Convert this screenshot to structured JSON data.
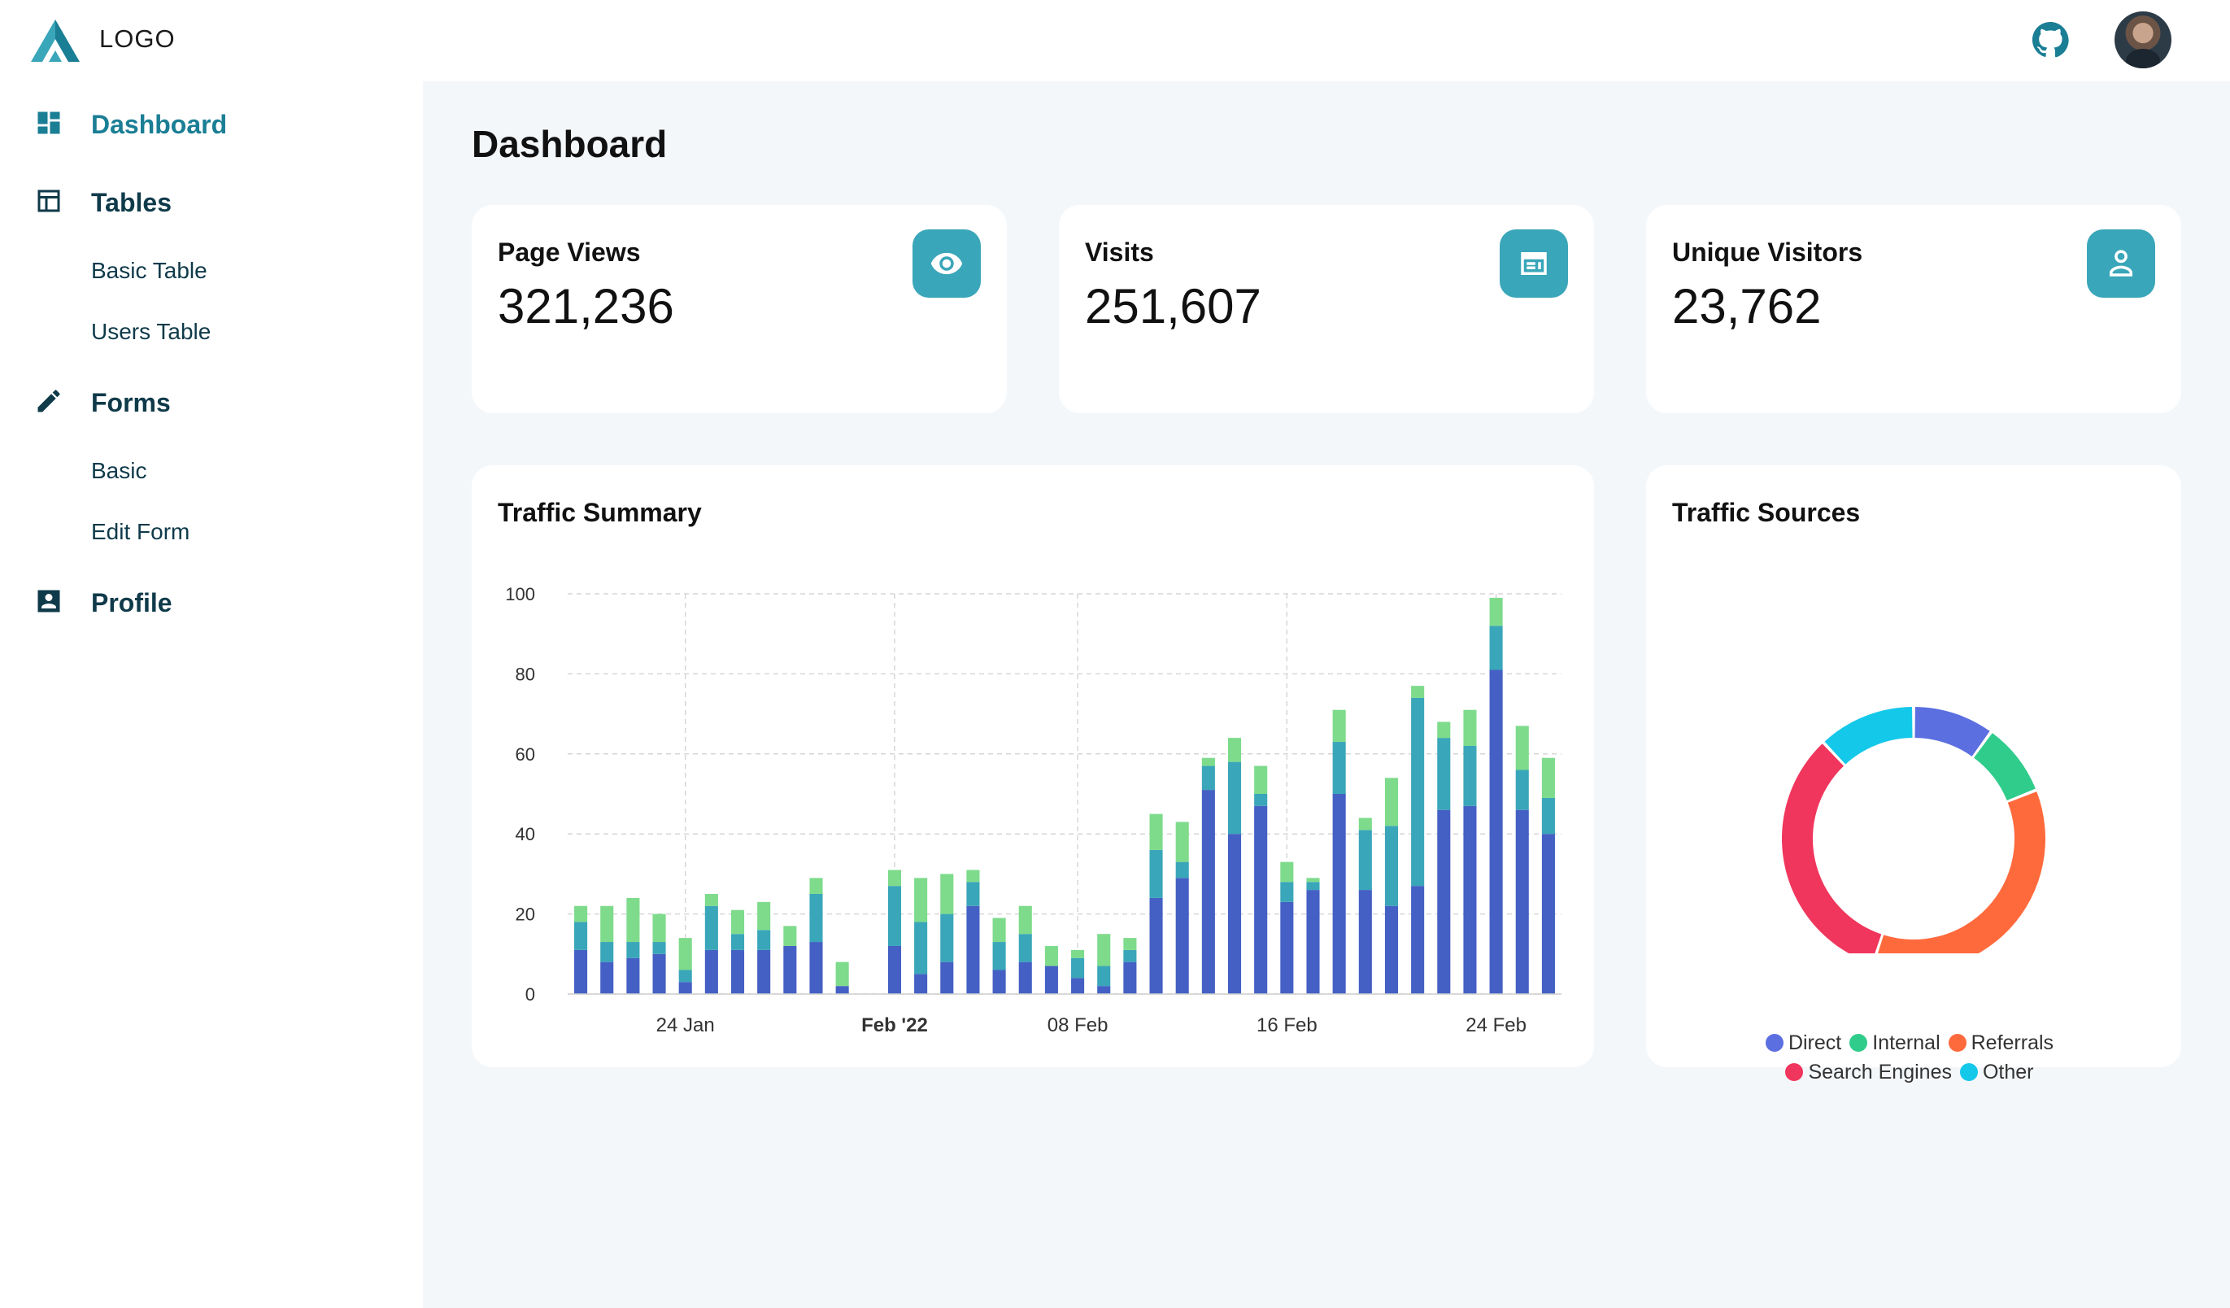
{
  "brand": {
    "logo_text": "LOGO"
  },
  "header": {
    "github_icon": "github-icon",
    "avatar": "user-avatar"
  },
  "sidebar": {
    "items": [
      {
        "label": "Dashboard",
        "icon": "dashboard-icon",
        "active": true
      },
      {
        "label": "Tables",
        "icon": "table-icon"
      },
      {
        "label": "Basic Table",
        "sub": true
      },
      {
        "label": "Users Table",
        "sub": true
      },
      {
        "label": "Forms",
        "icon": "pencil-icon"
      },
      {
        "label": "Basic",
        "sub": true
      },
      {
        "label": "Edit Form",
        "sub": true
      },
      {
        "label": "Profile",
        "icon": "profile-icon"
      }
    ]
  },
  "main": {
    "title": "Dashboard",
    "stats": [
      {
        "title": "Page Views",
        "value": "321,236",
        "icon": "eye-icon"
      },
      {
        "title": "Visits",
        "value": "251,607",
        "icon": "browser-window-icon"
      },
      {
        "title": "Unique Visitors",
        "value": "23,762",
        "icon": "person-icon"
      }
    ],
    "traffic_summary": {
      "title": "Traffic Summary"
    },
    "traffic_sources": {
      "title": "Traffic Sources"
    }
  },
  "colors": {
    "accent": "#1a7e95",
    "icon_bg": "#3aa6b9",
    "series_dark": "#4460c4",
    "series_mid": "#3aa6b9",
    "series_light": "#7edb8b"
  },
  "chart_data": [
    {
      "type": "bar",
      "stacked": true,
      "title": "Traffic Summary",
      "ylim": [
        0,
        100
      ],
      "yticks": [
        0,
        20,
        40,
        60,
        80,
        100
      ],
      "x_tick_labels": [
        {
          "label": "24 Jan",
          "index": 4
        },
        {
          "label": "Feb '22",
          "index": 12,
          "bold": true
        },
        {
          "label": "08 Feb",
          "index": 19
        },
        {
          "label": "16 Feb",
          "index": 27
        },
        {
          "label": "24 Feb",
          "index": 35
        }
      ],
      "grid": true,
      "series": [
        {
          "color": "#4460c4",
          "values": [
            11,
            8,
            9,
            10,
            3,
            11,
            11,
            11,
            12,
            13,
            2,
            0,
            12,
            5,
            8,
            22,
            6,
            8,
            7,
            4,
            2,
            8,
            24,
            29,
            51,
            40,
            47,
            23,
            26,
            50,
            26,
            22,
            27,
            46,
            47,
            81,
            46,
            40
          ]
        },
        {
          "color": "#3aa6b9",
          "values": [
            7,
            5,
            4,
            3,
            3,
            11,
            4,
            5,
            0,
            12,
            0,
            0,
            15,
            13,
            12,
            6,
            7,
            7,
            0,
            5,
            5,
            3,
            12,
            4,
            6,
            18,
            3,
            5,
            2,
            13,
            15,
            20,
            47,
            18,
            15,
            11,
            10,
            9
          ]
        },
        {
          "color": "#7edb8b",
          "values": [
            4,
            9,
            11,
            7,
            8,
            3,
            6,
            7,
            5,
            4,
            6,
            0,
            4,
            11,
            10,
            3,
            6,
            7,
            5,
            2,
            8,
            3,
            9,
            10,
            2,
            6,
            7,
            5,
            1,
            8,
            3,
            12,
            3,
            4,
            9,
            7,
            11,
            10
          ]
        }
      ]
    },
    {
      "type": "pie",
      "donut": true,
      "title": "Traffic Sources",
      "legend_position": "bottom",
      "slices": [
        {
          "name": "Direct",
          "value": 10,
          "color": "#5c6fe0"
        },
        {
          "name": "Internal",
          "value": 9,
          "color": "#2fcc8b"
        },
        {
          "name": "Referrals",
          "value": 36,
          "color": "#ff6a3d"
        },
        {
          "name": "Search Engines",
          "value": 33,
          "color": "#f0365c"
        },
        {
          "name": "Other",
          "value": 12,
          "color": "#14c8ea"
        }
      ]
    }
  ]
}
